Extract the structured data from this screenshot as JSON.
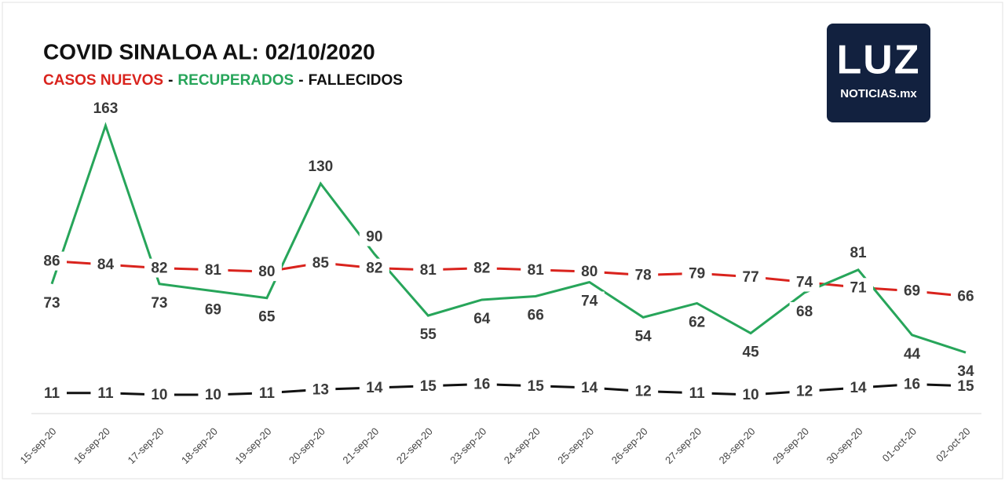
{
  "chart_data": {
    "type": "line",
    "title": "COVID SINALOA AL: 02/10/2020",
    "subtitle_separator": "-",
    "categories": [
      "15-sep-20",
      "16-sep-20",
      "17-sep-20",
      "18-sep-20",
      "19-sep-20",
      "20-sep-20",
      "21-sep-20",
      "22-sep-20",
      "23-sep-20",
      "24-sep-20",
      "25-sep-20",
      "26-sep-20",
      "27-sep-20",
      "28-sep-20",
      "29-sep-20",
      "30-sep-20",
      "01-oct-20",
      "02-oct-20"
    ],
    "series": [
      {
        "name": "CASOS NUEVOS",
        "color": "#d9231d",
        "values": [
          86,
          84,
          82,
          81,
          80,
          85,
          82,
          81,
          82,
          81,
          80,
          78,
          79,
          77,
          74,
          71,
          69,
          66
        ]
      },
      {
        "name": "RECUPERADOS",
        "color": "#27a55a",
        "values": [
          73,
          163,
          73,
          69,
          65,
          130,
          90,
          55,
          64,
          66,
          74,
          54,
          62,
          45,
          68,
          81,
          44,
          34
        ]
      },
      {
        "name": "FALLECIDOS",
        "color": "#111111",
        "values": [
          11,
          11,
          10,
          10,
          11,
          13,
          14,
          15,
          16,
          15,
          14,
          12,
          11,
          10,
          12,
          14,
          16,
          15
        ]
      }
    ]
  },
  "logo": {
    "title": "LUZ",
    "subtitle": "NOTICIAS.mx"
  }
}
